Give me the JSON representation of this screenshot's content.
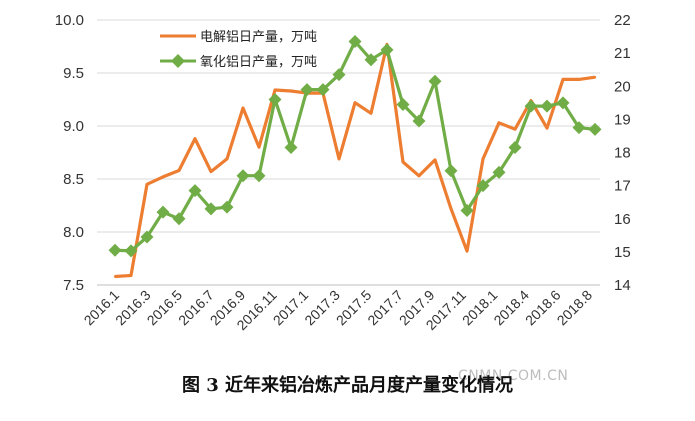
{
  "caption": "图 3 近年来铝冶炼产品月度产量变化情况",
  "watermark": "CNMN.COM.CN",
  "chart_data": {
    "type": "line",
    "dual_axis": true,
    "y_left": {
      "min": 7.5,
      "max": 10.0,
      "step": 0.5,
      "tick_labels": [
        "7.5",
        "8.0",
        "8.5",
        "9.0",
        "9.5",
        "10.0"
      ]
    },
    "y_right": {
      "min": 14,
      "max": 22,
      "step": 1,
      "tick_labels": [
        "14",
        "15",
        "16",
        "17",
        "18",
        "19",
        "20",
        "21",
        "22"
      ]
    },
    "x_tick_labels": [
      "2016.1",
      "2016.3",
      "2016.5",
      "2016.7",
      "2016.9",
      "2016.11",
      "2017.1",
      "2017.3",
      "2017.5",
      "2017.7",
      "2017.9",
      "2017.11",
      "2018.1",
      "2018.4",
      "2018.6",
      "2018.8"
    ],
    "grid": "horizontal",
    "legend_position": "top-left",
    "series": [
      {
        "name": "电解铝日产量，万吨",
        "axis": "left",
        "color": "#ED7D31",
        "marker": "none",
        "values": [
          7.58,
          7.59,
          8.45,
          8.52,
          8.58,
          8.88,
          8.57,
          8.69,
          9.17,
          8.8,
          9.34,
          9.33,
          9.31,
          9.31,
          8.69,
          9.22,
          9.12,
          9.77,
          8.66,
          8.53,
          8.68,
          8.22,
          7.82,
          8.69,
          9.03,
          8.97,
          9.24,
          8.98,
          9.44,
          9.44,
          9.46
        ]
      },
      {
        "name": "氧化铝日产量，万吨",
        "axis": "right",
        "color": "#70AD47",
        "marker": "diamond",
        "values": [
          15.05,
          15.03,
          15.45,
          16.2,
          16.0,
          16.85,
          16.3,
          16.35,
          17.3,
          17.3,
          19.6,
          18.15,
          19.9,
          19.9,
          20.35,
          21.35,
          20.8,
          21.1,
          19.45,
          18.95,
          20.15,
          17.45,
          16.25,
          17.0,
          17.4,
          18.15,
          19.4,
          19.4,
          19.5,
          18.75,
          18.7
        ]
      }
    ]
  }
}
